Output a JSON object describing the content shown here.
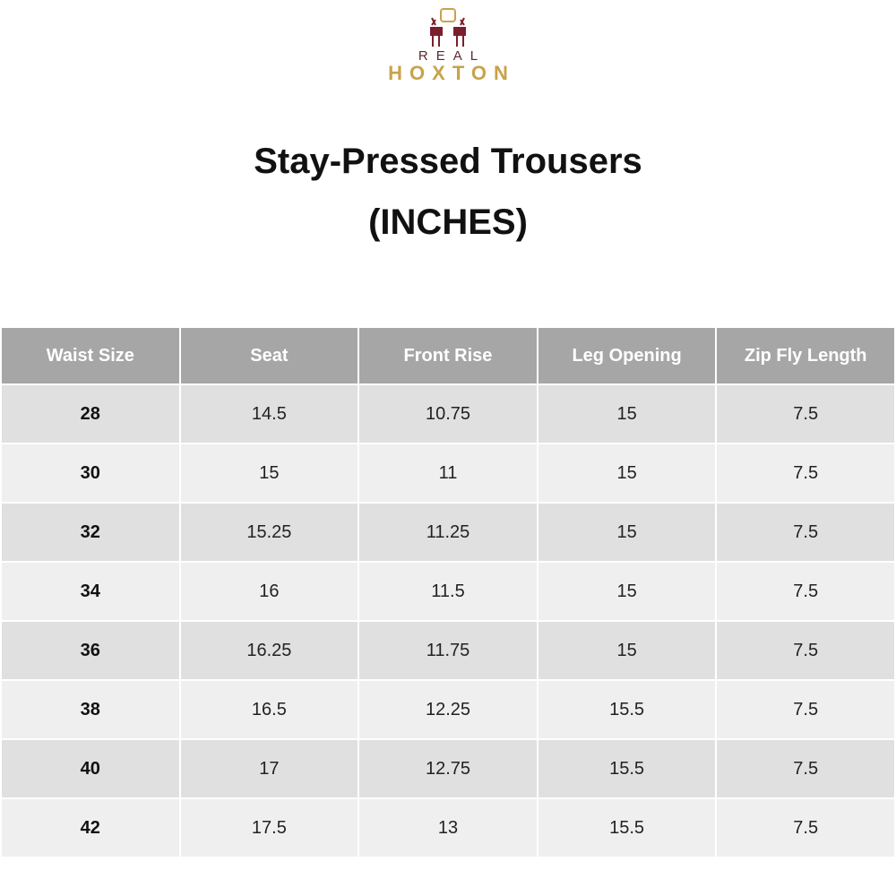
{
  "logo": {
    "top": "REAL",
    "bottom": "HOXTON"
  },
  "title": {
    "line1": "Stay-Pressed Trousers",
    "line2": "(INCHES)"
  },
  "table": {
    "header": [
      "Waist Size",
      "Seat",
      "Front Rise",
      "Leg Opening",
      "Zip Fly Length"
    ],
    "rows": [
      [
        "28",
        "14.5",
        "10.75",
        "15",
        "7.5"
      ],
      [
        "30",
        "15",
        "11",
        "15",
        "7.5"
      ],
      [
        "32",
        "15.25",
        "11.25",
        "15",
        "7.5"
      ],
      [
        "34",
        "16",
        "11.5",
        "15",
        "7.5"
      ],
      [
        "36",
        "16.25",
        "11.75",
        "15",
        "7.5"
      ],
      [
        "38",
        "16.5",
        "12.25",
        "15.5",
        "7.5"
      ],
      [
        "40",
        "17",
        "12.75",
        "15.5",
        "7.5"
      ],
      [
        "42",
        "17.5",
        "13",
        "15.5",
        "7.5"
      ]
    ]
  }
}
